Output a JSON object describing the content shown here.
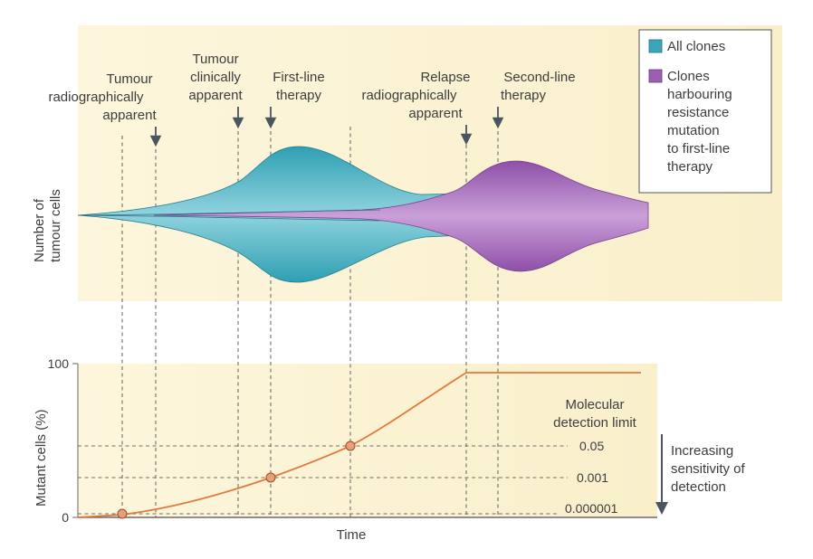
{
  "top_panel": {
    "ylabel_line1": "Number of",
    "ylabel_line2": "tumour cells",
    "events": [
      {
        "id": "radiographic",
        "lines": [
          "Tumour",
          "radiographically",
          "apparent"
        ]
      },
      {
        "id": "clinical",
        "lines": [
          "Tumour",
          "clinically",
          "apparent"
        ]
      },
      {
        "id": "first-line",
        "lines": [
          "First-line",
          "therapy"
        ]
      },
      {
        "id": "relapse",
        "lines": [
          "Relapse",
          "radiographically",
          "apparent"
        ]
      },
      {
        "id": "second-line",
        "lines": [
          "Second-line",
          "therapy"
        ]
      }
    ]
  },
  "legend": {
    "items": [
      {
        "label_lines": [
          "All clones"
        ],
        "color": "#3aa6b8"
      },
      {
        "label_lines": [
          "Clones",
          "harbouring",
          "resistance",
          "mutation",
          "to first-line",
          "therapy"
        ],
        "color": "#9b5fb2"
      }
    ]
  },
  "bottom_panel": {
    "ylabel": "Mutant cells (%)",
    "xlabel": "Time",
    "y_tick_top": "100",
    "y_tick_bottom": "0",
    "detection_title_line1": "Molecular",
    "detection_title_line2": "detection limit",
    "detection_limits": [
      "0.05",
      "0.001",
      "0.000001"
    ],
    "arrow_label_lines": [
      "Increasing",
      "sensitivity of",
      "detection"
    ],
    "curve_color": "#e07a3c"
  },
  "colors": {
    "panel_bg": "#fbf3d6",
    "teal": "#3aa6b8",
    "purple": "#9b5fb2",
    "marker_fill": "#e9a07a"
  }
}
